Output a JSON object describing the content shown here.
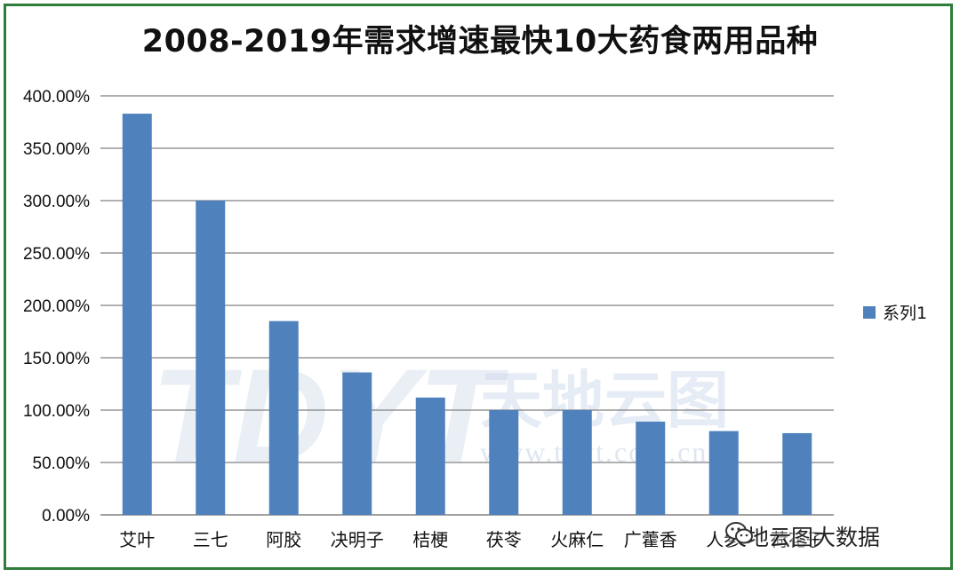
{
  "chart_data": {
    "type": "bar",
    "title": "2008-2019年需求增速最快10大药食两用品种",
    "categories": [
      "艾叶",
      "三七",
      "阿胶",
      "决明子",
      "桔梗",
      "茯苓",
      "火麻仁",
      "广藿香",
      "人参",
      "荷花子"
    ],
    "series": [
      {
        "name": "系列1",
        "values": [
          383,
          300,
          185,
          136,
          112,
          100,
          100,
          89,
          80,
          78
        ],
        "color": "#4f81bd"
      }
    ],
    "y_unit": "%",
    "ylim": [
      0,
      400
    ],
    "yticks": [
      "0.00%",
      "50.00%",
      "100.00%",
      "150.00%",
      "200.00%",
      "250.00%",
      "300.00%",
      "350.00%",
      "400.00%"
    ],
    "grid": true,
    "legend_position": "right"
  },
  "watermark": {
    "logo_text": "TDYT",
    "name": "天地云图",
    "url": "www.tdyt.com.cn"
  },
  "wechat_label": "天地云图大数据",
  "colors": {
    "frame": "#2e7d3a",
    "bar": "#4f81bd",
    "grid": "#808080"
  }
}
